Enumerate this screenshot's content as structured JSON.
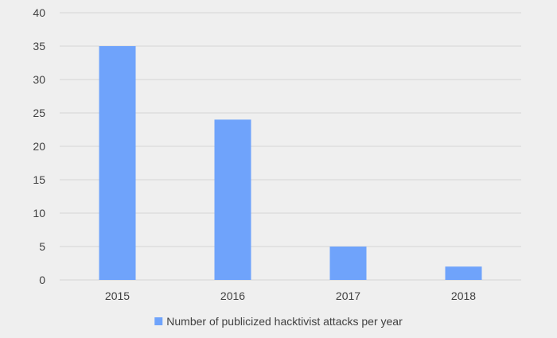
{
  "chart_data": {
    "type": "bar",
    "categories": [
      "2015",
      "2016",
      "2017",
      "2018"
    ],
    "series": [
      {
        "name": "Number of publicized hacktivist attacks per year",
        "values": [
          35,
          24,
          5,
          2
        ],
        "color": "#6fa3fb"
      }
    ],
    "title": "",
    "xlabel": "",
    "ylabel": "",
    "ylim": [
      0,
      40
    ],
    "yticks": [
      "0",
      "5",
      "10",
      "15",
      "20",
      "25",
      "30",
      "35",
      "40"
    ],
    "grid": true,
    "legend": "bottom"
  }
}
